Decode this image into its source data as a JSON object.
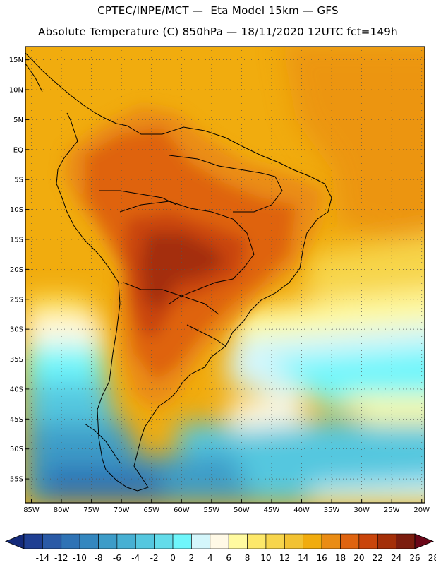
{
  "header": {
    "line1": "CPTEC/INPE/MCT —  Eta Model 15km — GFS",
    "line2": "Absolute Temperature (C) 850hPa — 18/11/2020 12UTC fct=149h"
  },
  "axes": {
    "lat_labels": [
      "15N",
      "10N",
      "5N",
      "EQ",
      "5S",
      "10S",
      "15S",
      "20S",
      "25S",
      "30S",
      "35S",
      "40S",
      "45S",
      "50S",
      "55S"
    ],
    "lat_values": [
      15,
      10,
      5,
      0,
      -5,
      -10,
      -15,
      -20,
      -25,
      -30,
      -35,
      -40,
      -45,
      -50,
      -55
    ],
    "lon_labels": [
      "85W",
      "80W",
      "75W",
      "70W",
      "65W",
      "60W",
      "55W",
      "50W",
      "45W",
      "40W",
      "35W",
      "30W",
      "25W",
      "20W"
    ],
    "lon_values": [
      -85,
      -80,
      -75,
      -70,
      -65,
      -60,
      -55,
      -50,
      -45,
      -40,
      -35,
      -30,
      -25,
      -20
    ],
    "lon_range": [
      -86,
      -19.5
    ],
    "lat_range": [
      -59,
      17.2
    ]
  },
  "colorbar": {
    "labels": [
      "-14",
      "-12",
      "-10",
      "-8",
      "-6",
      "-4",
      "-2",
      "0",
      "2",
      "4",
      "6",
      "8",
      "10",
      "12",
      "14",
      "16",
      "18",
      "20",
      "22",
      "24",
      "26",
      "28"
    ],
    "colors": [
      "#1f3f92",
      "#2a5aa6",
      "#2f73b5",
      "#3487bf",
      "#3d9cc8",
      "#47b0d3",
      "#55c7df",
      "#63dcea",
      "#6ff6fb",
      "#d4f6fb",
      "#fff9e6",
      "#fffaa0",
      "#fde86a",
      "#f7d54c",
      "#f2c232",
      "#f1ac0e",
      "#ea8c14",
      "#df6410",
      "#c9450b",
      "#a42f08",
      "#7c1d0e"
    ],
    "low_cap_color": "#142a7a",
    "high_cap_color": "#6a0618"
  }
}
